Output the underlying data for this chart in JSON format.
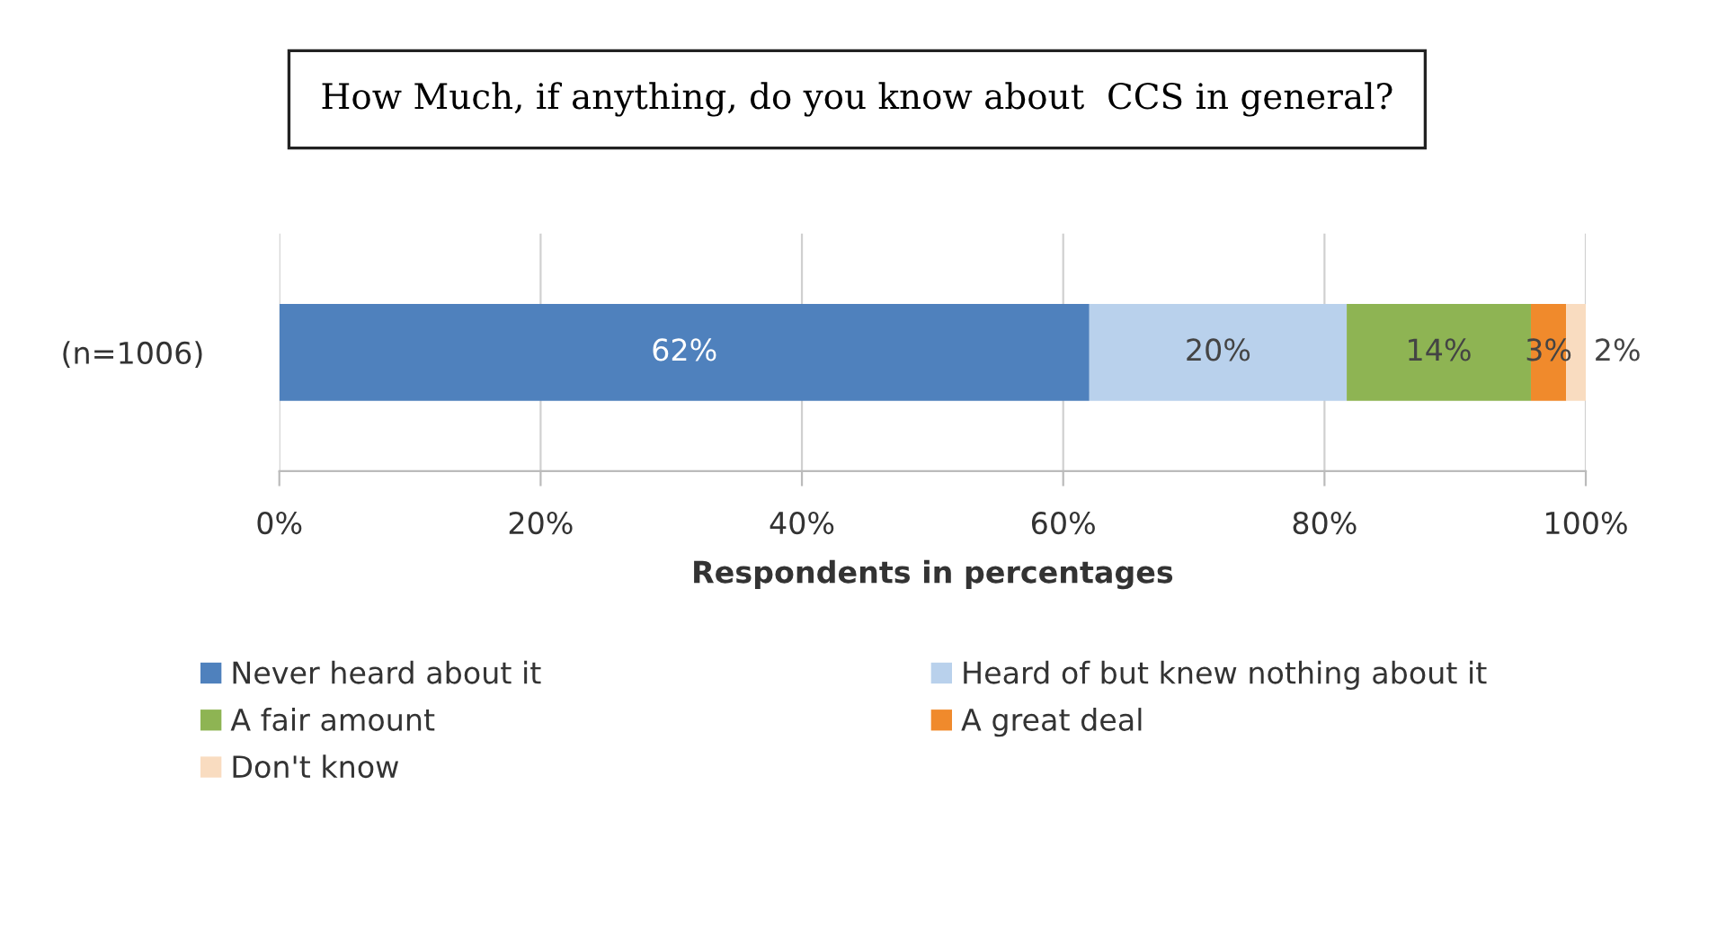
{
  "chart_data": {
    "type": "bar",
    "orientation": "horizontal",
    "stacked": true,
    "title": "How Much, if anything, do you know about  CCS in general?",
    "xlabel": "Respondents in percentages",
    "categories": [
      "(n=1006)"
    ],
    "series": [
      {
        "name": "Never heard about it",
        "color": "#4f81bd",
        "values": [
          62
        ],
        "value_labels": [
          "62%"
        ]
      },
      {
        "name": "Heard of but knew nothing about it",
        "color": "#b9d1ec",
        "values": [
          19.7
        ],
        "value_labels": [
          "20%"
        ]
      },
      {
        "name": "A fair amount",
        "color": "#8eb453",
        "values": [
          14.1
        ],
        "value_labels": [
          "14%"
        ]
      },
      {
        "name": "A great deal",
        "color": "#f08a2c",
        "values": [
          2.7
        ],
        "value_labels": [
          "3%"
        ]
      },
      {
        "name": "Don't know",
        "color": "#f9dcc0",
        "values": [
          1.5
        ],
        "value_labels": [
          "2%"
        ]
      }
    ],
    "xlim": [
      0,
      100
    ],
    "xticks": [
      {
        "value": 0,
        "label": "0%"
      },
      {
        "value": 20,
        "label": "20%"
      },
      {
        "value": 40,
        "label": "40%"
      },
      {
        "value": 60,
        "label": "60%"
      },
      {
        "value": 80,
        "label": "80%"
      },
      {
        "value": 100,
        "label": "100%"
      }
    ],
    "grid": "x",
    "legend": "bottom"
  }
}
